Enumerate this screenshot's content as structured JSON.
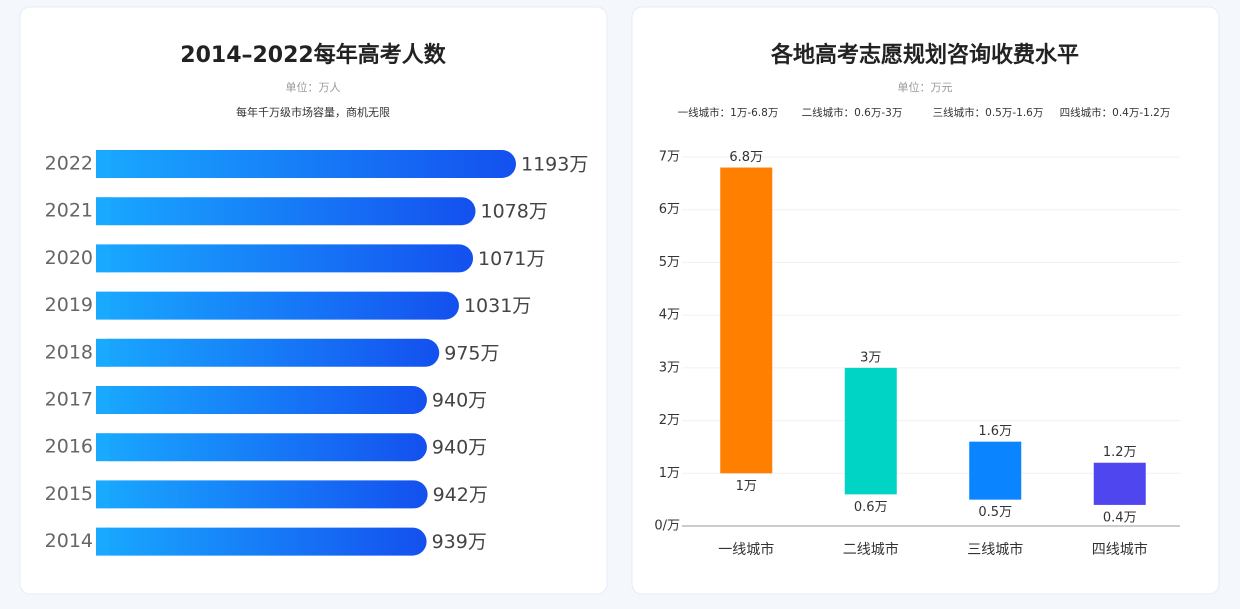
{
  "chart_data": [
    {
      "type": "hbar",
      "title": "2014–2022每年高考人数",
      "subtitle": "单位：万人",
      "annotation": "每年千万级市场容量，商机无限",
      "categories": [
        "2022",
        "2021",
        "2020",
        "2019",
        "2018",
        "2017",
        "2016",
        "2015",
        "2014"
      ],
      "values": [
        1193,
        1078,
        1071,
        1031,
        975,
        940,
        940,
        942,
        939
      ],
      "value_labels": [
        "1193万",
        "1078万",
        "1071万",
        "1031万",
        "975万",
        "940万",
        "940万",
        "942万",
        "939万"
      ],
      "colors": [
        "#19a9ff",
        "#1450ef"
      ]
    },
    {
      "type": "range-bar",
      "title": "各地高考志愿规划咨询收费水平",
      "subtitle": "单位：万元",
      "notes": [
        "一线城市：1万-6.8万",
        "二线城市：0.6万-3万",
        "三线城市：0.5万-1.6万",
        "四线城市：0.4万-1.2万"
      ],
      "categories": [
        "一线城市",
        "二线城市",
        "三线城市",
        "四线城市"
      ],
      "lows": [
        1,
        0.6,
        0.5,
        0.4
      ],
      "highs": [
        6.8,
        3,
        1.6,
        1.2
      ],
      "low_labels": [
        "1万",
        "0.6万",
        "0.5万",
        "0.4万"
      ],
      "high_labels": [
        "6.8万",
        "3万",
        "1.6万",
        "1.2万"
      ],
      "colors": [
        "#ff7f00",
        "#00d4c4",
        "#0a84ff",
        "#5046f0"
      ],
      "ylim": [
        0,
        7
      ],
      "yticks": [
        {
          "value": 0,
          "label": "0/万"
        },
        {
          "value": 1,
          "label": "1万"
        },
        {
          "value": 2,
          "label": "2万"
        },
        {
          "value": 3,
          "label": "3万"
        },
        {
          "value": 4,
          "label": "4万"
        },
        {
          "value": 5,
          "label": "5万"
        },
        {
          "value": 6,
          "label": "6万"
        },
        {
          "value": 7,
          "label": "7万"
        }
      ],
      "grid": true
    }
  ]
}
